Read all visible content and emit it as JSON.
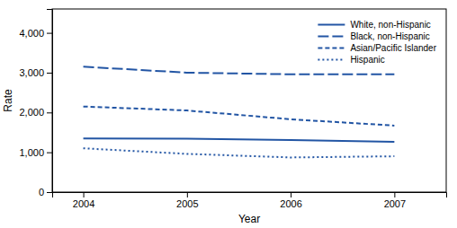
{
  "chart_data": {
    "type": "line",
    "xlabel": "Year",
    "ylabel": "Rate",
    "x": [
      2004,
      2005,
      2006,
      2007
    ],
    "series": [
      {
        "name": "White, non-Hispanic",
        "color": "#2255A4",
        "line_style": "solid",
        "values": [
          1350,
          1340,
          1310,
          1260
        ]
      },
      {
        "name": "Black, non-Hispanic",
        "color": "#2255A4",
        "line_style": "dashed_long",
        "values": [
          3150,
          3000,
          2960,
          2960
        ]
      },
      {
        "name": "Asian/Pacific Islander",
        "color": "#2255A4",
        "line_style": "dashed_medium",
        "values": [
          2150,
          2050,
          1830,
          1670
        ]
      },
      {
        "name": "Hispanic",
        "color": "#2255A4",
        "line_style": "dashed_short",
        "values": [
          1100,
          960,
          870,
          900
        ]
      }
    ],
    "xlim": [
      2003.7,
      2007.5
    ],
    "xticks": [
      2004,
      2005,
      2006,
      2007
    ],
    "ylim": [
      0,
      4600
    ],
    "yticks": [
      0,
      {
        "value": 1000,
        "label": "1,000"
      },
      {
        "value": 2000,
        "label": "2,000"
      },
      {
        "value": 3000,
        "label": "3,000"
      },
      {
        "value": 4000,
        "label": "4,000"
      }
    ],
    "grid": false,
    "legend": "upper right"
  }
}
